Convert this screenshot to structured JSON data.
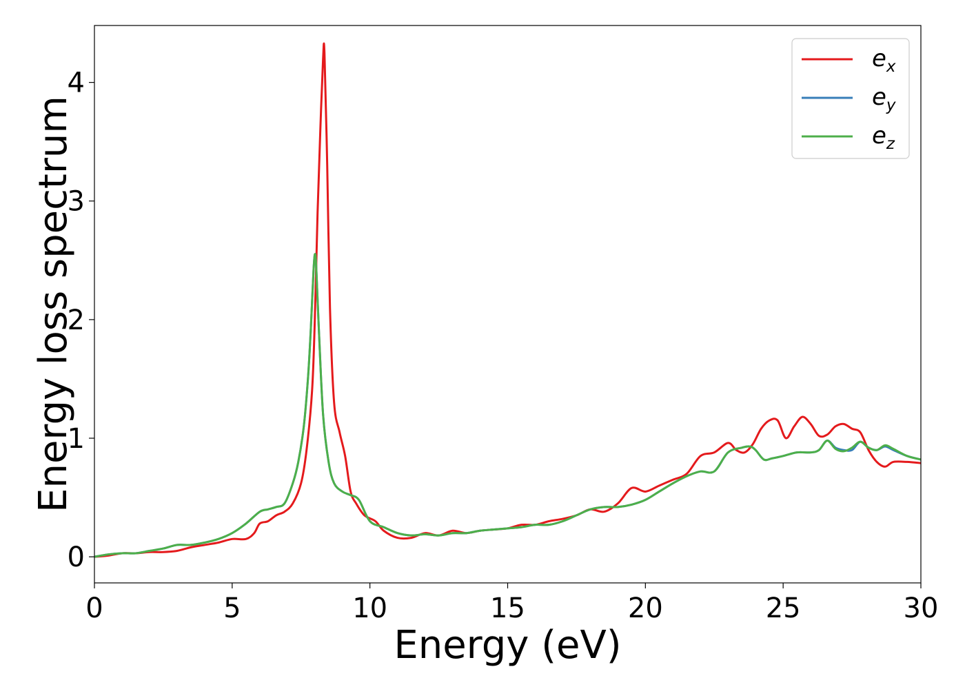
{
  "chart_data": {
    "type": "line",
    "xlabel": "Energy (eV)",
    "ylabel": "Energy loss spectrum",
    "xlim": [
      0,
      30
    ],
    "ylim": [
      -0.22,
      4.48
    ],
    "xticks": [
      "0",
      "5",
      "10",
      "15",
      "20",
      "25",
      "30"
    ],
    "yticks": [
      "0",
      "1",
      "2",
      "3",
      "4"
    ],
    "grid": false,
    "legend_position": "top-right",
    "series": [
      {
        "name": "e_x",
        "legend_base": "e",
        "legend_sub": "x",
        "color": "#e41a1c",
        "x": [
          0,
          0.5,
          1.0,
          1.5,
          2.0,
          2.5,
          3.0,
          3.5,
          4.0,
          4.5,
          5.0,
          5.5,
          5.8,
          6.0,
          6.3,
          6.6,
          6.9,
          7.2,
          7.5,
          7.7,
          7.9,
          8.0,
          8.1,
          8.2,
          8.3,
          8.35,
          8.45,
          8.55,
          8.7,
          8.9,
          9.1,
          9.3,
          9.5,
          9.8,
          10.2,
          10.5,
          11.0,
          11.5,
          12.0,
          12.5,
          13.0,
          13.5,
          14.0,
          14.5,
          15.0,
          15.5,
          16.0,
          16.5,
          17.0,
          17.5,
          18.0,
          18.5,
          19.0,
          19.5,
          20.0,
          20.5,
          21.0,
          21.5,
          22.0,
          22.5,
          23.0,
          23.3,
          23.6,
          23.9,
          24.2,
          24.5,
          24.8,
          25.1,
          25.4,
          25.7,
          26.0,
          26.3,
          26.6,
          26.9,
          27.2,
          27.5,
          27.8,
          28.1,
          28.4,
          28.7,
          29.0,
          29.5,
          30.0
        ],
        "y": [
          0.0,
          0.01,
          0.03,
          0.03,
          0.04,
          0.04,
          0.05,
          0.08,
          0.1,
          0.12,
          0.15,
          0.15,
          0.2,
          0.28,
          0.3,
          0.35,
          0.38,
          0.45,
          0.62,
          0.9,
          1.4,
          2.0,
          2.9,
          3.6,
          4.2,
          4.25,
          3.3,
          2.1,
          1.3,
          1.05,
          0.85,
          0.55,
          0.45,
          0.35,
          0.3,
          0.22,
          0.16,
          0.16,
          0.2,
          0.18,
          0.22,
          0.2,
          0.22,
          0.23,
          0.24,
          0.27,
          0.27,
          0.3,
          0.32,
          0.35,
          0.4,
          0.38,
          0.45,
          0.58,
          0.55,
          0.6,
          0.65,
          0.7,
          0.85,
          0.88,
          0.96,
          0.9,
          0.88,
          0.95,
          1.08,
          1.15,
          1.15,
          1.0,
          1.1,
          1.18,
          1.12,
          1.02,
          1.03,
          1.1,
          1.12,
          1.08,
          1.05,
          0.9,
          0.8,
          0.76,
          0.8,
          0.8,
          0.79
        ]
      },
      {
        "name": "e_y",
        "legend_base": "e",
        "legend_sub": "y",
        "color": "#377eb8",
        "x": [
          0,
          0.5,
          1.0,
          1.5,
          2.0,
          2.5,
          3.0,
          3.5,
          4.0,
          4.5,
          5.0,
          5.5,
          6.0,
          6.3,
          6.6,
          6.9,
          7.2,
          7.4,
          7.6,
          7.75,
          7.85,
          7.95,
          8.0,
          8.05,
          8.15,
          8.3,
          8.5,
          8.7,
          9.0,
          9.3,
          9.6,
          10.0,
          10.5,
          11.0,
          11.5,
          12.0,
          12.5,
          13.0,
          13.5,
          14.0,
          14.5,
          15.0,
          15.5,
          16.0,
          16.5,
          17.0,
          17.5,
          18.0,
          18.5,
          19.0,
          19.5,
          20.0,
          20.5,
          21.0,
          21.5,
          22.0,
          22.5,
          23.0,
          23.5,
          23.8,
          24.0,
          24.3,
          24.6,
          25.0,
          25.5,
          26.0,
          26.3,
          26.6,
          26.9,
          27.2,
          27.5,
          27.8,
          28.1,
          28.4,
          28.7,
          29.0,
          29.5,
          30.0
        ],
        "y": [
          0.0,
          0.02,
          0.03,
          0.03,
          0.05,
          0.07,
          0.1,
          0.1,
          0.12,
          0.15,
          0.2,
          0.28,
          0.38,
          0.4,
          0.42,
          0.45,
          0.62,
          0.8,
          1.1,
          1.5,
          1.9,
          2.4,
          2.55,
          2.45,
          1.9,
          1.2,
          0.8,
          0.62,
          0.55,
          0.52,
          0.48,
          0.3,
          0.25,
          0.2,
          0.18,
          0.19,
          0.18,
          0.2,
          0.2,
          0.22,
          0.23,
          0.24,
          0.25,
          0.27,
          0.27,
          0.3,
          0.35,
          0.4,
          0.42,
          0.42,
          0.44,
          0.48,
          0.55,
          0.62,
          0.68,
          0.72,
          0.72,
          0.88,
          0.92,
          0.93,
          0.9,
          0.82,
          0.83,
          0.85,
          0.88,
          0.88,
          0.9,
          0.98,
          0.92,
          0.9,
          0.9,
          0.97,
          0.92,
          0.9,
          0.93,
          0.9,
          0.85,
          0.82
        ]
      },
      {
        "name": "e_z",
        "legend_base": "e",
        "legend_sub": "z",
        "color": "#4daf4a",
        "x": [
          0,
          0.5,
          1.0,
          1.5,
          2.0,
          2.5,
          3.0,
          3.5,
          4.0,
          4.5,
          5.0,
          5.5,
          6.0,
          6.3,
          6.6,
          6.9,
          7.2,
          7.4,
          7.6,
          7.75,
          7.85,
          7.95,
          8.0,
          8.05,
          8.15,
          8.3,
          8.5,
          8.7,
          9.0,
          9.3,
          9.6,
          10.0,
          10.5,
          11.0,
          11.5,
          12.0,
          12.5,
          13.0,
          13.5,
          14.0,
          14.5,
          15.0,
          15.5,
          16.0,
          16.5,
          17.0,
          17.5,
          18.0,
          18.5,
          19.0,
          19.5,
          20.0,
          20.5,
          21.0,
          21.5,
          22.0,
          22.5,
          23.0,
          23.5,
          23.8,
          24.0,
          24.3,
          24.6,
          25.0,
          25.5,
          26.0,
          26.3,
          26.6,
          26.9,
          27.2,
          27.5,
          27.8,
          28.1,
          28.4,
          28.7,
          29.0,
          29.5,
          30.0
        ],
        "y": [
          0.0,
          0.02,
          0.03,
          0.03,
          0.05,
          0.07,
          0.1,
          0.1,
          0.12,
          0.15,
          0.2,
          0.28,
          0.38,
          0.4,
          0.42,
          0.45,
          0.62,
          0.8,
          1.1,
          1.5,
          1.9,
          2.4,
          2.55,
          2.45,
          1.9,
          1.2,
          0.8,
          0.62,
          0.55,
          0.52,
          0.48,
          0.3,
          0.25,
          0.2,
          0.18,
          0.19,
          0.18,
          0.2,
          0.2,
          0.22,
          0.23,
          0.24,
          0.25,
          0.27,
          0.27,
          0.3,
          0.35,
          0.4,
          0.42,
          0.42,
          0.44,
          0.48,
          0.55,
          0.62,
          0.68,
          0.72,
          0.72,
          0.88,
          0.92,
          0.93,
          0.9,
          0.82,
          0.83,
          0.85,
          0.88,
          0.88,
          0.9,
          0.98,
          0.91,
          0.89,
          0.92,
          0.97,
          0.92,
          0.9,
          0.94,
          0.91,
          0.85,
          0.82
        ]
      }
    ]
  }
}
